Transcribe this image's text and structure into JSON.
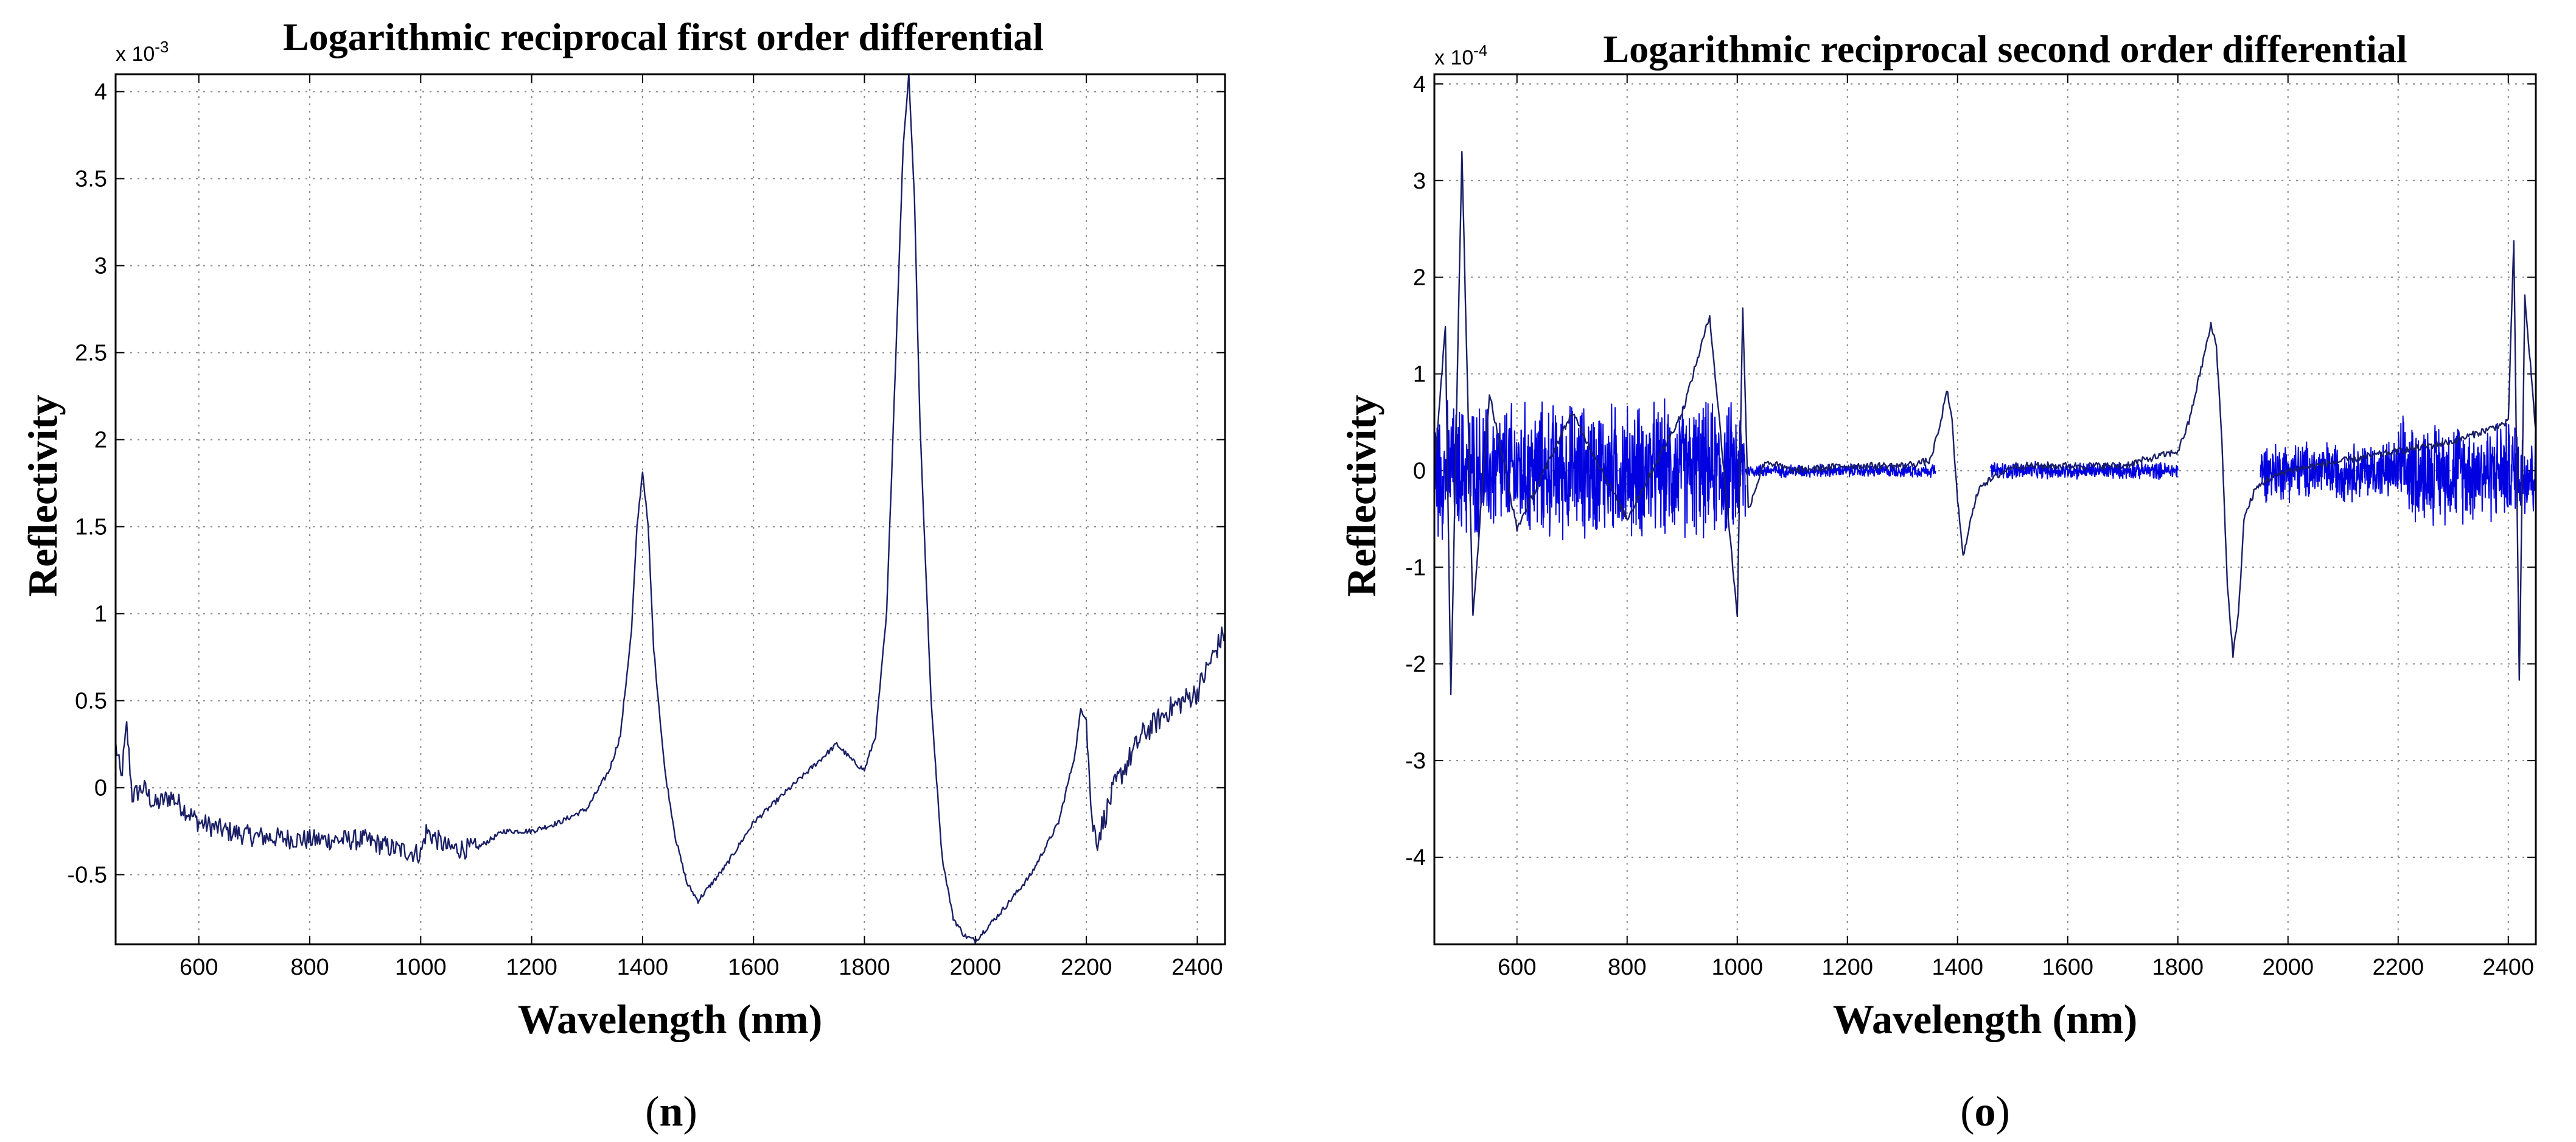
{
  "chart_data": [
    {
      "type": "line",
      "title": "Logarithmic reciprocal first order differential",
      "xlabel": "Wavelength (nm)",
      "ylabel": "Reflectivity",
      "y_exponent": "x 10",
      "y_exponent_power": "-3",
      "caption_letter": "n",
      "xlim": [
        450,
        2450
      ],
      "ylim": [
        -0.9,
        4.1
      ],
      "xticks": [
        600,
        800,
        1000,
        1200,
        1400,
        1600,
        1800,
        2000,
        2200,
        2400
      ],
      "yticks": [
        -0.5,
        0,
        0.5,
        1,
        1.5,
        2,
        2.5,
        3,
        3.5,
        4
      ],
      "xtick_labels": [
        "600",
        "800",
        "1000",
        "1200",
        "1400",
        "1600",
        "1800",
        "2000",
        "2200",
        "2400"
      ],
      "ytick_labels": [
        "-0.5",
        "0",
        "0.5",
        "1",
        "1.5",
        "2",
        "2.5",
        "3",
        "3.5",
        "4"
      ],
      "grid": true,
      "line_color": "#1a1f66",
      "series": [
        {
          "x": [
            450,
            460,
            470,
            480,
            500,
            520,
            550,
            600,
            650,
            700,
            800,
            900,
            950,
            1000,
            1010,
            1050,
            1100,
            1150,
            1200,
            1250,
            1300,
            1340,
            1360,
            1380,
            1390,
            1400,
            1410,
            1420,
            1440,
            1460,
            1480,
            1500,
            1550,
            1600,
            1650,
            1700,
            1750,
            1780,
            1800,
            1820,
            1840,
            1860,
            1870,
            1880,
            1890,
            1900,
            1920,
            1940,
            1960,
            1980,
            2000,
            2050,
            2100,
            2150,
            2180,
            2190,
            2200,
            2210,
            2220,
            2250,
            2300,
            2350,
            2400,
            2420,
            2450
          ],
          "y": [
            0.25,
            0.05,
            0.35,
            -0.05,
            0.0,
            -0.1,
            -0.05,
            -0.2,
            -0.25,
            -0.28,
            -0.3,
            -0.3,
            -0.35,
            -0.38,
            -0.25,
            -0.35,
            -0.35,
            -0.25,
            -0.25,
            -0.2,
            -0.12,
            0.1,
            0.3,
            0.9,
            1.5,
            1.82,
            1.5,
            0.8,
            0.1,
            -0.3,
            -0.55,
            -0.65,
            -0.45,
            -0.2,
            -0.05,
            0.1,
            0.25,
            0.15,
            0.1,
            0.3,
            1.0,
            2.8,
            3.7,
            4.1,
            3.4,
            2.1,
            0.5,
            -0.4,
            -0.75,
            -0.85,
            -0.88,
            -0.7,
            -0.5,
            -0.2,
            0.2,
            0.45,
            0.4,
            -0.2,
            -0.3,
            0.0,
            0.3,
            0.45,
            0.55,
            0.7,
            0.9
          ]
        }
      ]
    },
    {
      "type": "line",
      "title": "Logarithmic reciprocal second order differential",
      "xlabel": "Wavelength (nm)",
      "ylabel": "Reflectivity",
      "y_exponent": "x 10",
      "y_exponent_power": "-4",
      "caption_letter": "o",
      "xlim": [
        450,
        2450
      ],
      "ylim": [
        -4.9,
        4.1
      ],
      "xticks": [
        600,
        800,
        1000,
        1200,
        1400,
        1600,
        1800,
        2000,
        2200,
        2400
      ],
      "yticks": [
        -4,
        -3,
        -2,
        -1,
        0,
        1,
        2,
        3,
        4
      ],
      "xtick_labels": [
        "600",
        "800",
        "1000",
        "1200",
        "1400",
        "1600",
        "1800",
        "2000",
        "2200",
        "2400"
      ],
      "ytick_labels": [
        "-4",
        "-3",
        "-2",
        "-1",
        "0",
        "1",
        "2",
        "3",
        "4"
      ],
      "grid": true,
      "line_color": "#1a1f66",
      "series": [
        {
          "x": [
            450,
            470,
            480,
            490,
            500,
            520,
            550,
            600,
            700,
            800,
            900,
            950,
            1000,
            1010,
            1020,
            1050,
            1100,
            1200,
            1300,
            1350,
            1370,
            1380,
            1390,
            1400,
            1410,
            1420,
            1440,
            1460,
            1500,
            1600,
            1700,
            1800,
            1820,
            1840,
            1860,
            1870,
            1880,
            1890,
            1900,
            1910,
            1920,
            1940,
            1960,
            2000,
            2100,
            2200,
            2300,
            2400,
            2410,
            2420,
            2430,
            2450
          ],
          "y": [
            0.0,
            1.5,
            -2.3,
            0.5,
            3.3,
            -1.5,
            0.8,
            -0.6,
            0.6,
            -0.5,
            0.6,
            1.6,
            -1.5,
            1.7,
            -0.4,
            0.1,
            0.0,
            0.05,
            0.05,
            0.1,
            0.5,
            0.85,
            0.5,
            -0.3,
            -0.9,
            -0.6,
            -0.15,
            -0.1,
            0.05,
            0.05,
            0.05,
            0.2,
            0.5,
            1.0,
            1.5,
            1.3,
            0.3,
            -1.2,
            -1.9,
            -1.5,
            -0.5,
            -0.2,
            -0.1,
            0.0,
            0.1,
            0.2,
            0.3,
            0.5,
            2.4,
            -2.2,
            1.8,
            0.4
          ]
        }
      ],
      "noise_bands": [
        {
          "x0": 450,
          "x1": 1015,
          "amp": 0.8
        },
        {
          "x0": 1015,
          "x1": 1360,
          "amp": 0.08
        },
        {
          "x0": 1460,
          "x1": 1800,
          "amp": 0.1
        },
        {
          "x0": 1950,
          "x1": 2200,
          "amp": 0.35
        },
        {
          "x0": 2200,
          "x1": 2450,
          "amp": 0.6
        }
      ],
      "noise_color": "#0000e0"
    }
  ]
}
